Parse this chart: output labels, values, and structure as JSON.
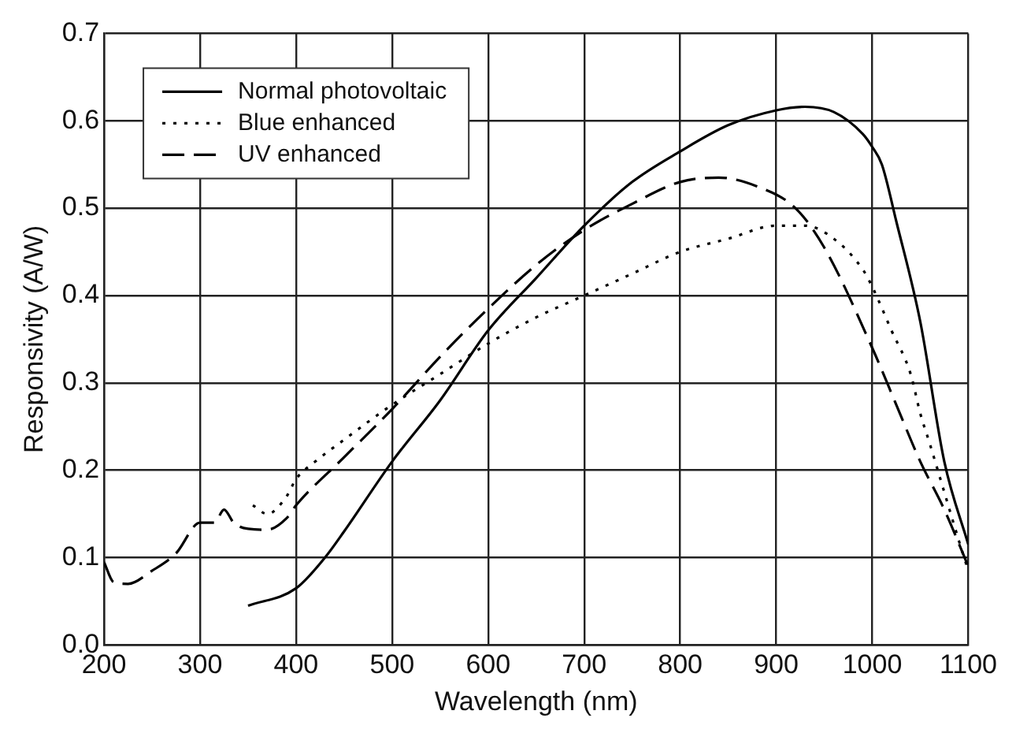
{
  "chart_data": {
    "type": "line",
    "xlabel": "Wavelength (nm)",
    "ylabel": "Responsivity (A/W)",
    "xlim": [
      200,
      1100
    ],
    "ylim": [
      0,
      0.7
    ],
    "xticks": [
      200,
      300,
      400,
      500,
      600,
      700,
      800,
      900,
      1000,
      1100
    ],
    "yticks": [
      {
        "value": 0,
        "label": "0.0"
      },
      0.1,
      0.2,
      0.3,
      0.4,
      0.5,
      0.6,
      0.7
    ],
    "grid": true,
    "legend": "top left",
    "marker": "none",
    "series": [
      {
        "name": "Normal photovoltaic",
        "color": "#000000",
        "line_style": "solid",
        "x": [
          350,
          400,
          430,
          450,
          500,
          550,
          600,
          650,
          700,
          750,
          800,
          850,
          900,
          930,
          960,
          990,
          1000,
          1010,
          1025,
          1050,
          1075,
          1100
        ],
        "values": [
          0.045,
          0.065,
          0.1,
          0.13,
          0.21,
          0.28,
          0.36,
          0.42,
          0.48,
          0.53,
          0.565,
          0.595,
          0.612,
          0.616,
          0.61,
          0.585,
          0.57,
          0.55,
          0.485,
          0.37,
          0.21,
          0.115
        ]
      },
      {
        "name": "Blue enhanced",
        "color": "#000000",
        "line_style": "dotted",
        "x": [
          355,
          370,
          390,
          400,
          420,
          450,
          500,
          550,
          600,
          650,
          700,
          750,
          800,
          850,
          900,
          930,
          960,
          990,
          1000,
          1020,
          1040,
          1050,
          1060,
          1075,
          1090,
          1100
        ],
        "values": [
          0.16,
          0.15,
          0.17,
          0.19,
          0.21,
          0.235,
          0.275,
          0.31,
          0.345,
          0.375,
          0.4,
          0.425,
          0.45,
          0.465,
          0.48,
          0.48,
          0.465,
          0.43,
          0.41,
          0.36,
          0.31,
          0.265,
          0.23,
          0.175,
          0.12,
          0.085
        ]
      },
      {
        "name": "UV enhanced",
        "color": "#000000",
        "line_style": "dashed",
        "x": [
          200,
          210,
          225,
          250,
          275,
          300,
          315,
          325,
          335,
          350,
          370,
          390,
          400,
          450,
          500,
          550,
          600,
          650,
          700,
          750,
          800,
          840,
          880,
          920,
          950,
          1000,
          1025,
          1050,
          1075,
          1100
        ],
        "values": [
          0.095,
          0.072,
          0.07,
          0.085,
          0.105,
          0.14,
          0.14,
          0.155,
          0.14,
          0.133,
          0.132,
          0.145,
          0.16,
          0.215,
          0.27,
          0.33,
          0.385,
          0.435,
          0.475,
          0.505,
          0.53,
          0.535,
          0.525,
          0.5,
          0.455,
          0.34,
          0.275,
          0.21,
          0.155,
          0.09
        ]
      }
    ]
  }
}
